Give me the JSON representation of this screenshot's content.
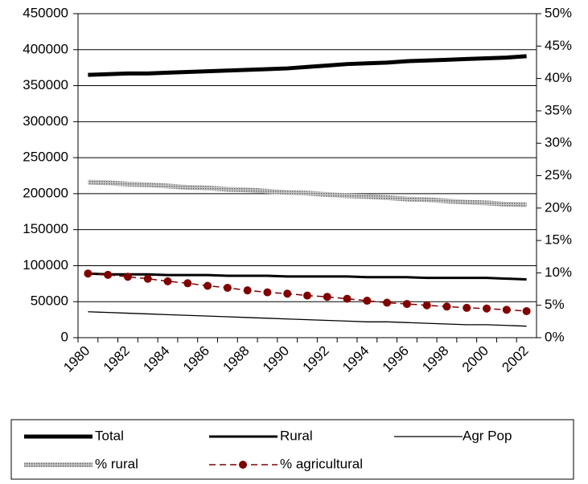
{
  "chart_data": {
    "type": "line",
    "categories": [
      "1980",
      null,
      "1982",
      null,
      "1984",
      null,
      "1986",
      null,
      "1988",
      null,
      "1990",
      null,
      "1992",
      null,
      "1994",
      null,
      "1996",
      null,
      "1998",
      null,
      "2000",
      null,
      "2002"
    ],
    "series": [
      {
        "name": "Total",
        "color": "#000000",
        "line_width": 5,
        "values": [
          365000,
          366000,
          367000,
          367000,
          368000,
          369000,
          370000,
          371000,
          372000,
          373000,
          374000,
          376000,
          378000,
          380000,
          381000,
          382000,
          384000,
          385000,
          386000,
          387000,
          388000,
          389000,
          391000
        ]
      },
      {
        "name": "Rural",
        "color": "#000000",
        "line_width": 3,
        "values": [
          89000,
          88000,
          88000,
          88000,
          87000,
          87000,
          87000,
          86000,
          86000,
          86000,
          85000,
          85000,
          85000,
          85000,
          84000,
          84000,
          84000,
          83000,
          83000,
          83000,
          83000,
          82000,
          81000
        ]
      },
      {
        "name": "Agr Pop",
        "color": "#000000",
        "line_width": 1.3,
        "values": [
          36000,
          35000,
          34000,
          33000,
          32000,
          31000,
          30000,
          29000,
          28000,
          27000,
          26000,
          25000,
          24000,
          23000,
          22000,
          22000,
          21000,
          20000,
          19000,
          18000,
          18000,
          17000,
          16000
        ]
      },
      {
        "name": "% rural",
        "color": "#a0a0a0",
        "line_width": 6,
        "hatched": true,
        "axis": "y2",
        "values": [
          24.0,
          23.9,
          23.7,
          23.6,
          23.4,
          23.2,
          23.1,
          22.9,
          22.8,
          22.6,
          22.4,
          22.3,
          22.1,
          21.9,
          21.8,
          21.6,
          21.4,
          21.3,
          21.1,
          20.9,
          20.8,
          20.6,
          20.5
        ]
      },
      {
        "name": "% agricultural",
        "color": "#800000",
        "line_width": 1.5,
        "dashed": true,
        "marker": "circle",
        "axis": "y2",
        "values": [
          9.9,
          9.7,
          9.4,
          9.1,
          8.7,
          8.4,
          8.0,
          7.7,
          7.3,
          7.0,
          6.8,
          6.5,
          6.3,
          6.0,
          5.7,
          5.4,
          5.2,
          5.0,
          4.8,
          4.6,
          4.5,
          4.3,
          4.1
        ]
      }
    ],
    "ylim": [
      0,
      450000
    ],
    "yticks": [
      0,
      50000,
      100000,
      150000,
      200000,
      250000,
      300000,
      350000,
      400000,
      450000
    ],
    "y2lim": [
      0,
      50
    ],
    "y2ticks": [
      {
        "value": 0,
        "label": "0%"
      },
      {
        "value": 5,
        "label": "5%"
      },
      {
        "value": 10,
        "label": "10%"
      },
      {
        "value": 15,
        "label": "15%"
      },
      {
        "value": 20,
        "label": "20%"
      },
      {
        "value": 25,
        "label": "25%"
      },
      {
        "value": 30,
        "label": "30%"
      },
      {
        "value": 35,
        "label": "35%"
      },
      {
        "value": 40,
        "label": "40%"
      },
      {
        "value": 45,
        "label": "45%"
      },
      {
        "value": 50,
        "label": "50%"
      }
    ],
    "grid": true,
    "legend": "bottom"
  }
}
